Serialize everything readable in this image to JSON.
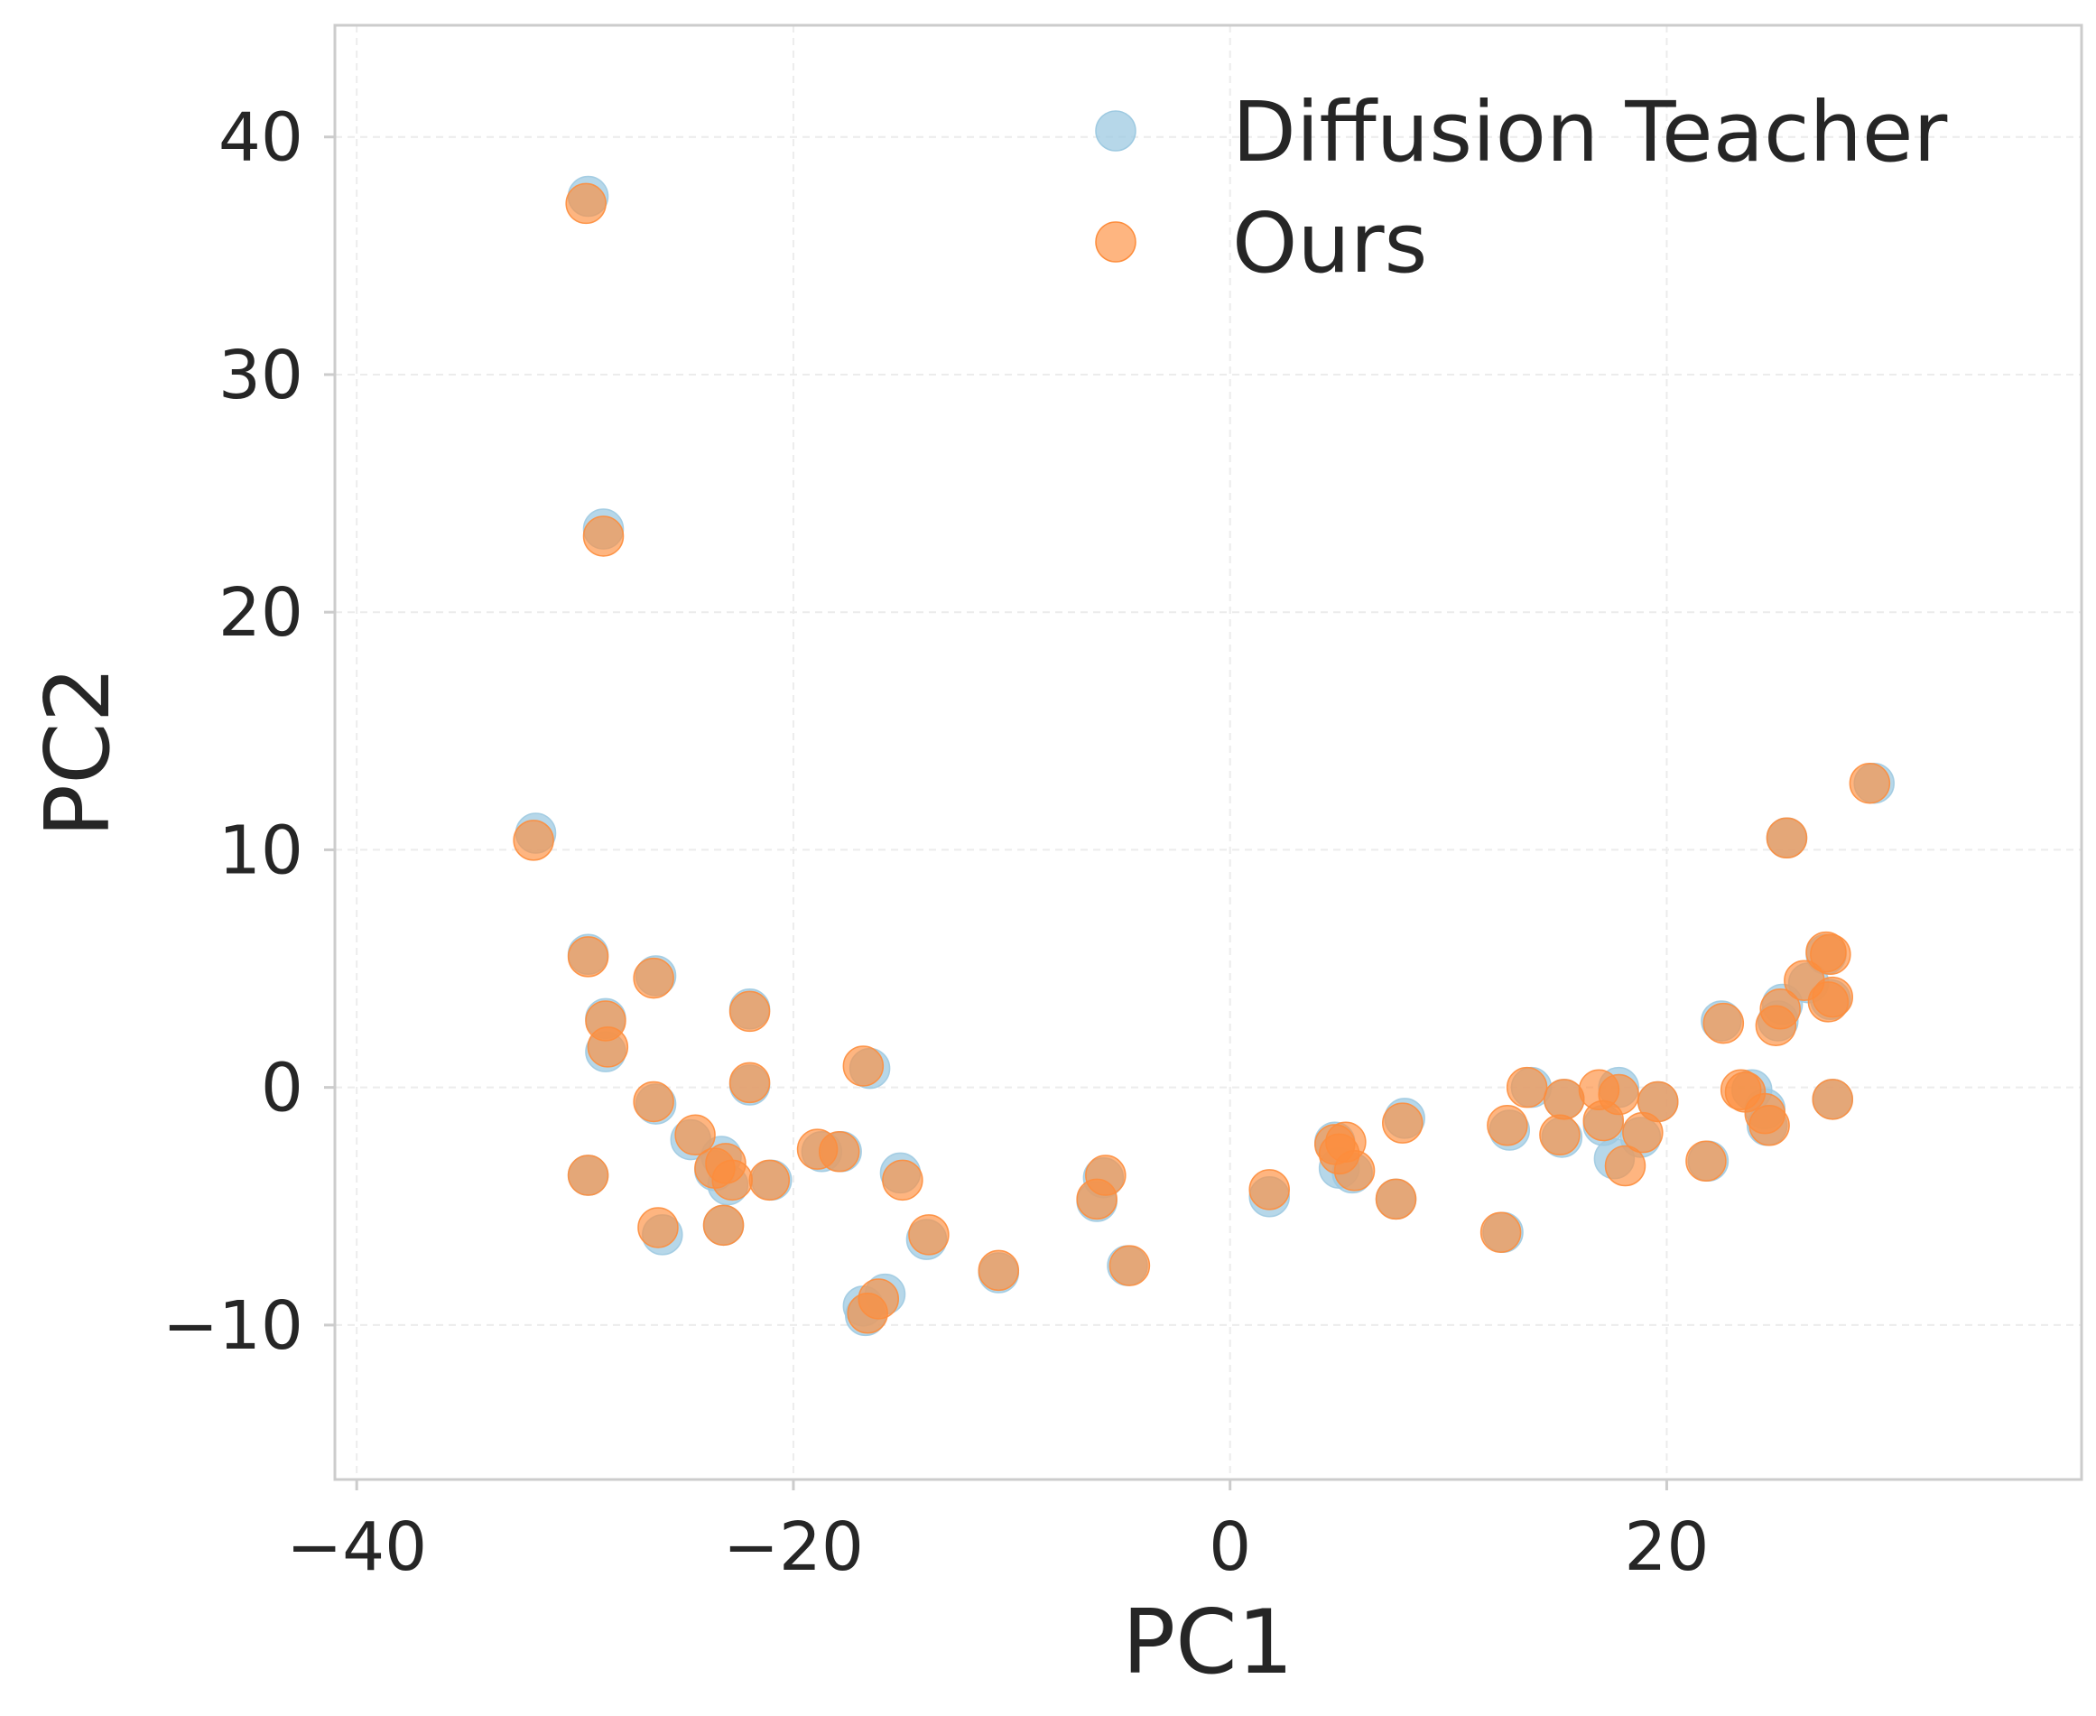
{
  "chart_data": {
    "type": "scatter",
    "title": "",
    "xlabel": "PC1",
    "ylabel": "PC2",
    "xlim": [
      -41,
      39
    ],
    "ylim": [
      -16.5,
      44.7
    ],
    "xticks": [
      -40,
      -20,
      0,
      20
    ],
    "xtick_labels": [
      "−40",
      "−20",
      "0",
      "20"
    ],
    "yticks": [
      -10,
      0,
      10,
      20,
      30,
      40
    ],
    "ytick_labels": [
      "−10",
      "0",
      "10",
      "20",
      "30",
      "40"
    ],
    "grid": true,
    "legend_position": "top-right",
    "series": [
      {
        "name": "Diffusion Teacher",
        "color": "#9ecae1",
        "opacity": 0.75,
        "points": [
          [
            -29.4,
            37.5
          ],
          [
            -28.7,
            23.5
          ],
          [
            -31.8,
            10.7
          ],
          [
            -29.4,
            5.6
          ],
          [
            -26.3,
            4.7
          ],
          [
            -28.6,
            2.9
          ],
          [
            -28.6,
            1.5
          ],
          [
            -26.3,
            -0.7
          ],
          [
            -24.7,
            -2.2
          ],
          [
            -23.3,
            -2.9
          ],
          [
            -23.6,
            -3.5
          ],
          [
            -23.0,
            -4.1
          ],
          [
            -22.0,
            3.3
          ],
          [
            -22.0,
            0.1
          ],
          [
            -21.0,
            -3.9
          ],
          [
            -29.4,
            -3.7
          ],
          [
            -26.0,
            -6.2
          ],
          [
            -23.2,
            -5.8
          ],
          [
            -18.7,
            -2.7
          ],
          [
            -17.8,
            -2.7
          ],
          [
            -16.5,
            0.8
          ],
          [
            -15.1,
            -3.6
          ],
          [
            -13.9,
            -6.4
          ],
          [
            -16.8,
            -9.2
          ],
          [
            -16.7,
            -9.6
          ],
          [
            -15.8,
            -8.7
          ],
          [
            -10.6,
            -7.8
          ],
          [
            -6.1,
            -4.8
          ],
          [
            -5.8,
            -3.8
          ],
          [
            -4.7,
            -7.5
          ],
          [
            1.8,
            -4.6
          ],
          [
            4.8,
            -2.3
          ],
          [
            5.0,
            -3.4
          ],
          [
            5.6,
            -3.6
          ],
          [
            7.6,
            -4.7
          ],
          [
            8.0,
            -1.3
          ],
          [
            12.5,
            -6.1
          ],
          [
            12.8,
            -1.8
          ],
          [
            13.8,
            0.0
          ],
          [
            15.3,
            -0.5
          ],
          [
            15.2,
            -2.1
          ],
          [
            17.1,
            -1.6
          ],
          [
            17.6,
            -3.0
          ],
          [
            17.8,
            0.0
          ],
          [
            18.8,
            -2.1
          ],
          [
            19.6,
            -0.6
          ],
          [
            21.9,
            -3.1
          ],
          [
            22.5,
            2.8
          ],
          [
            23.9,
            -0.1
          ],
          [
            24.5,
            -0.9
          ],
          [
            24.6,
            -1.6
          ],
          [
            25.1,
            2.8
          ],
          [
            25.3,
            3.5
          ],
          [
            25.5,
            10.5
          ],
          [
            26.5,
            4.4
          ],
          [
            27.3,
            5.6
          ],
          [
            27.5,
            3.7
          ],
          [
            27.6,
            -0.5
          ],
          [
            29.5,
            12.8
          ]
        ]
      },
      {
        "name": "Ours",
        "color": "#fd8d3c",
        "opacity": 0.65,
        "points": [
          [
            -29.5,
            37.2
          ],
          [
            -28.7,
            23.2
          ],
          [
            -31.9,
            10.4
          ],
          [
            -29.4,
            5.5
          ],
          [
            -26.4,
            4.6
          ],
          [
            -28.6,
            2.8
          ],
          [
            -28.5,
            1.7
          ],
          [
            -26.4,
            -0.6
          ],
          [
            -24.5,
            -2.0
          ],
          [
            -23.6,
            -3.4
          ],
          [
            -23.1,
            -3.2
          ],
          [
            -22.8,
            -3.9
          ],
          [
            -22.0,
            3.2
          ],
          [
            -22.0,
            0.2
          ],
          [
            -21.1,
            -3.9
          ],
          [
            -29.4,
            -3.7
          ],
          [
            -26.2,
            -5.9
          ],
          [
            -23.2,
            -5.8
          ],
          [
            -18.9,
            -2.6
          ],
          [
            -17.9,
            -2.7
          ],
          [
            -16.8,
            0.9
          ],
          [
            -15.0,
            -3.9
          ],
          [
            -13.8,
            -6.2
          ],
          [
            -16.6,
            -9.5
          ],
          [
            -16.1,
            -8.9
          ],
          [
            -10.6,
            -7.7
          ],
          [
            -6.1,
            -4.7
          ],
          [
            -5.7,
            -3.7
          ],
          [
            -4.6,
            -7.5
          ],
          [
            1.8,
            -4.3
          ],
          [
            4.8,
            -2.4
          ],
          [
            5.3,
            -2.3
          ],
          [
            5.0,
            -2.8
          ],
          [
            5.7,
            -3.5
          ],
          [
            7.6,
            -4.7
          ],
          [
            7.9,
            -1.5
          ],
          [
            12.4,
            -6.1
          ],
          [
            12.7,
            -1.6
          ],
          [
            13.6,
            0.0
          ],
          [
            15.3,
            -0.5
          ],
          [
            15.1,
            -2.0
          ],
          [
            16.9,
            -0.1
          ],
          [
            17.1,
            -1.4
          ],
          [
            17.8,
            -0.3
          ],
          [
            18.1,
            -3.3
          ],
          [
            18.9,
            -1.9
          ],
          [
            19.6,
            -0.6
          ],
          [
            21.8,
            -3.1
          ],
          [
            22.6,
            2.7
          ],
          [
            23.4,
            -0.1
          ],
          [
            23.6,
            -0.2
          ],
          [
            24.5,
            -1.1
          ],
          [
            24.7,
            -1.6
          ],
          [
            25.0,
            2.6
          ],
          [
            25.2,
            3.3
          ],
          [
            25.5,
            10.5
          ],
          [
            26.3,
            4.5
          ],
          [
            27.3,
            5.7
          ],
          [
            27.4,
            3.6
          ],
          [
            27.5,
            5.6
          ],
          [
            27.6,
            3.8
          ],
          [
            27.6,
            -0.5
          ],
          [
            29.3,
            12.8
          ]
        ]
      }
    ]
  }
}
